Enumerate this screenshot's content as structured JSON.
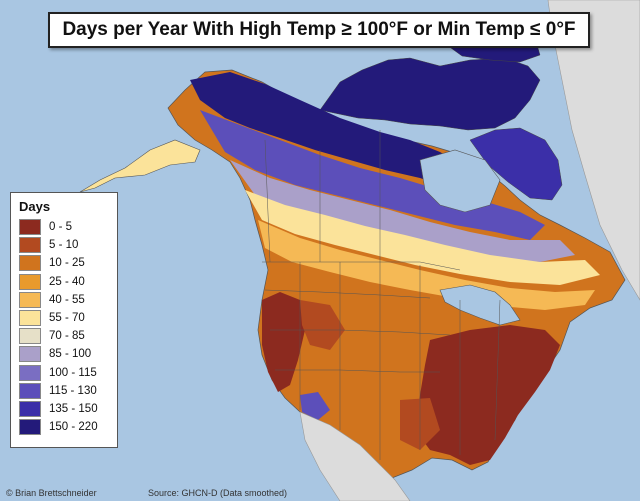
{
  "title": "Days per Year With High Temp ≥ 100°F or Min Temp ≤ 0°F",
  "legend": {
    "title": "Days",
    "items": [
      {
        "label": "0 - 5",
        "color": "#8c2a1f"
      },
      {
        "label": "5 - 10",
        "color": "#b24a20"
      },
      {
        "label": "10 - 25",
        "color": "#d0741e"
      },
      {
        "label": "25 - 40",
        "color": "#e89a2c"
      },
      {
        "label": "40 - 55",
        "color": "#f5b955"
      },
      {
        "label": "55 - 70",
        "color": "#fbe39a"
      },
      {
        "label": "70 - 85",
        "color": "#e6e0c8"
      },
      {
        "label": "85 - 100",
        "color": "#aaa0c9"
      },
      {
        "label": "100 - 115",
        "color": "#7a6ec2"
      },
      {
        "label": "115 - 130",
        "color": "#5c4fba"
      },
      {
        "label": "135 - 150",
        "color": "#3b2fa8"
      },
      {
        "label": "150 - 220",
        "color": "#231a7a"
      }
    ]
  },
  "credits": {
    "author": "© Brian Brettschneider",
    "source": "Source: GHCN-D (Data smoothed)"
  },
  "colors": {
    "ocean": "#a9c6e2",
    "land_outside": "#dcdcdc",
    "boundary": "#555555"
  }
}
